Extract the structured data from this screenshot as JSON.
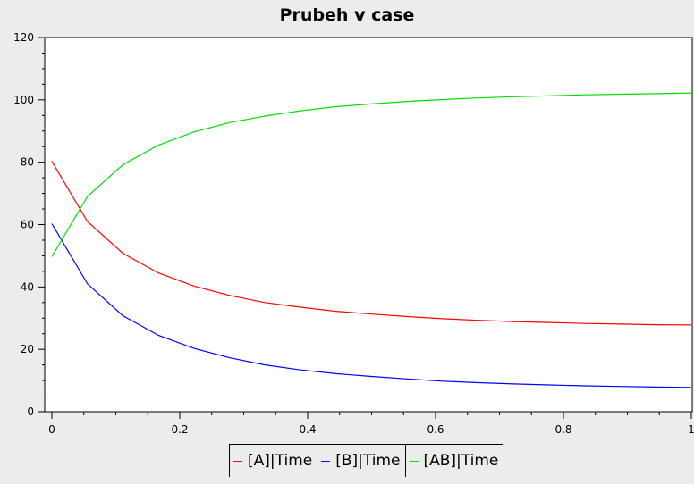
{
  "chart_data": {
    "type": "line",
    "title": "Prubeh v case",
    "xlim": [
      0,
      1
    ],
    "ylim": [
      0,
      120
    ],
    "x_ticks": [
      0,
      0.2,
      0.4,
      0.6,
      0.8,
      1
    ],
    "x_tick_labels": [
      "0",
      "0.2",
      "0.4",
      "0.6",
      "0.8",
      "1"
    ],
    "y_ticks": [
      0,
      20,
      40,
      60,
      80,
      100,
      120
    ],
    "y_tick_labels": [
      "0",
      "20",
      "40",
      "60",
      "80",
      "100",
      "120"
    ],
    "grid": false,
    "legend_position": "bottom-center",
    "x": [
      0,
      0.0556,
      0.1111,
      0.1667,
      0.2222,
      0.2778,
      0.3333,
      0.3889,
      0.4444,
      0.5,
      0.5556,
      0.6111,
      0.6667,
      0.7222,
      0.7778,
      0.8333,
      0.8889,
      0.9444,
      1
    ],
    "series": [
      {
        "name": "[A]|Time",
        "color": "#ff0000",
        "values": [
          80.3,
          61.0,
          50.8,
          44.5,
          40.3,
          37.3,
          35.0,
          33.5,
          32.2,
          31.3,
          30.5,
          29.8,
          29.3,
          28.9,
          28.6,
          28.3,
          28.1,
          27.9,
          27.8
        ]
      },
      {
        "name": "[B]|Time",
        "color": "#0000ff",
        "values": [
          60.3,
          41.0,
          30.8,
          24.5,
          20.3,
          17.3,
          15.0,
          13.4,
          12.2,
          11.3,
          10.5,
          9.8,
          9.3,
          8.9,
          8.6,
          8.3,
          8.1,
          7.9,
          7.8
        ]
      },
      {
        "name": "[AB]|Time",
        "color": "#00dd00",
        "values": [
          49.7,
          69.0,
          79.2,
          85.5,
          89.7,
          92.7,
          94.8,
          96.5,
          97.8,
          98.7,
          99.5,
          100.1,
          100.6,
          101.0,
          101.3,
          101.6,
          101.8,
          102.0,
          102.2
        ]
      }
    ]
  }
}
